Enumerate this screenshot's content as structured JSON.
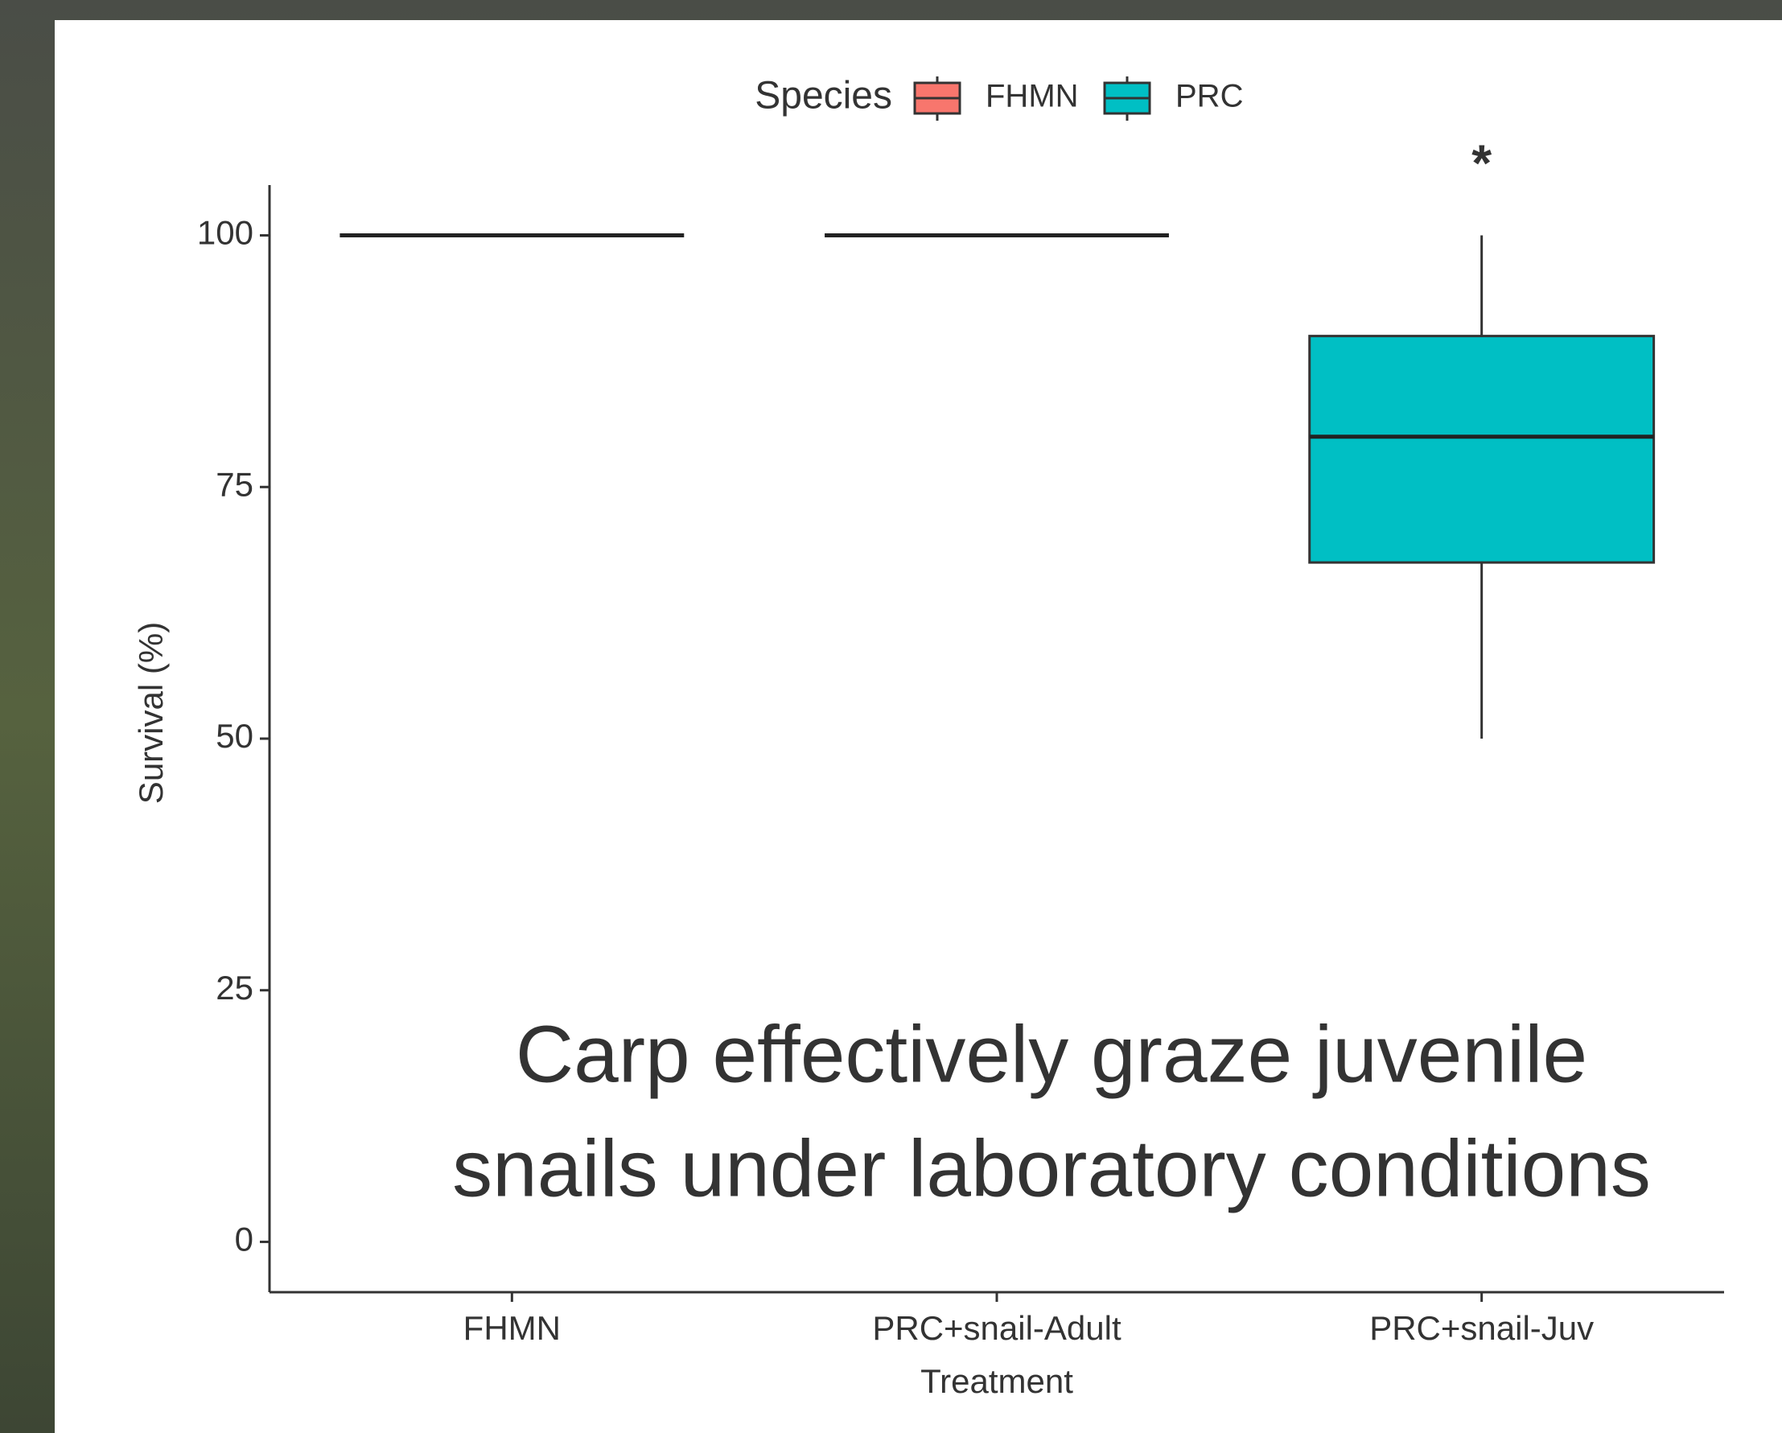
{
  "chart_data": {
    "type": "box",
    "legend_title": "Species",
    "x_label": "Treatment",
    "y_label": "Survival (%)",
    "categories": [
      "FHMN",
      "PRC+snail-Adult",
      "PRC+snail-Juv"
    ],
    "series": [
      {
        "name": "FHMN",
        "color": "#F8766D",
        "values": [
          {
            "min": 100,
            "q1": 100,
            "median": 100,
            "q3": 100,
            "max": 100
          },
          null,
          null
        ]
      },
      {
        "name": "PRC",
        "color": "#00BFC4",
        "values": [
          null,
          {
            "min": 100,
            "q1": 100,
            "median": 100,
            "q3": 100,
            "max": 100
          },
          {
            "min": 50,
            "q1": 67.5,
            "median": 80,
            "q3": 90,
            "max": 100
          }
        ]
      }
    ],
    "ylim": [
      -5,
      105
    ],
    "yticks": [
      0,
      25,
      50,
      75,
      100
    ],
    "grid": false,
    "annotation": "*",
    "caption": [
      "Carp effectively graze juvenile",
      "snails under laboratory conditions"
    ]
  }
}
